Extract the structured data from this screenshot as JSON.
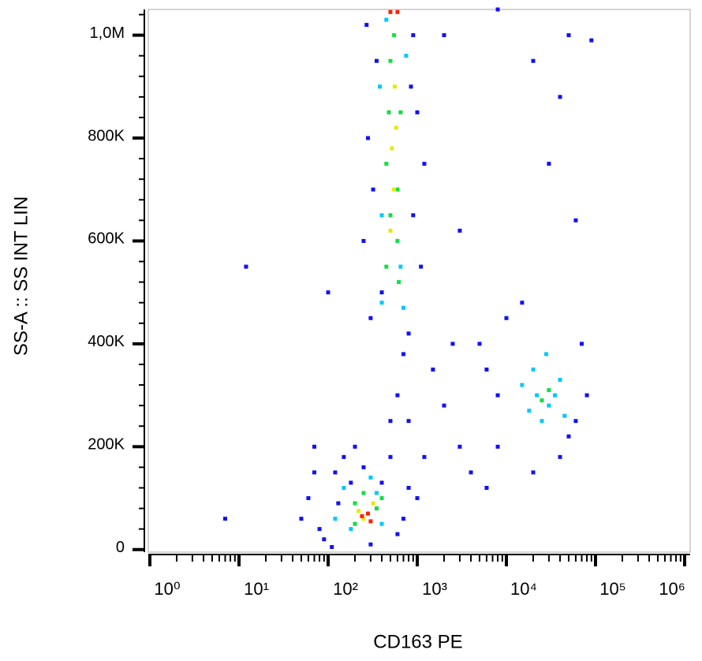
{
  "chart_data": {
    "type": "scatter",
    "x_label": "CD163 PE",
    "y_label": "SS-A :: SS INT LIN",
    "xscale": "log",
    "xlim": [
      1,
      1000000
    ],
    "ylim": [
      -5000,
      1050000
    ],
    "xticks": [
      {
        "value": 1,
        "label": "10⁰"
      },
      {
        "value": 10,
        "label": "10¹"
      },
      {
        "value": 100,
        "label": "10²"
      },
      {
        "value": 1000,
        "label": "10³"
      },
      {
        "value": 10000,
        "label": "10⁴"
      },
      {
        "value": 100000,
        "label": "10⁵"
      },
      {
        "value": 1000000,
        "label": "10⁶"
      }
    ],
    "xminorticks": [
      2,
      3,
      4,
      5,
      6,
      7,
      8,
      9,
      20,
      30,
      40,
      50,
      60,
      70,
      80,
      90,
      200,
      300,
      400,
      500,
      600,
      700,
      800,
      900,
      2000,
      3000,
      4000,
      5000,
      6000,
      7000,
      8000,
      9000,
      20000,
      30000,
      40000,
      50000,
      60000,
      70000,
      80000,
      90000,
      200000,
      300000,
      400000,
      500000,
      600000,
      700000,
      800000,
      900000
    ],
    "yticks": [
      0,
      {
        "value": 200000,
        "label": "200K"
      },
      {
        "value": 400000,
        "label": "400K"
      },
      {
        "value": 600000,
        "label": "600K"
      },
      {
        "value": 800000,
        "label": "800K"
      },
      {
        "value": 1000000,
        "label": "1,0M"
      }
    ],
    "yminorticks": [
      40000,
      80000,
      120000,
      160000,
      240000,
      280000,
      320000,
      360000,
      440000,
      480000,
      520000,
      560000,
      640000,
      680000,
      720000,
      760000,
      840000,
      880000,
      920000,
      960000,
      1040000
    ],
    "series": [
      {
        "color": "#1010ff",
        "x": [
          80,
          120,
          150,
          60,
          90,
          400,
          700,
          500,
          200,
          300,
          130,
          1000,
          70,
          50,
          600,
          180,
          250,
          800,
          110,
          300,
          800,
          250,
          900,
          280,
          1000,
          350,
          900,
          320,
          1100,
          400,
          700,
          270,
          850,
          1200,
          600,
          800,
          2000,
          3000,
          1500,
          500,
          4000,
          2500,
          6000,
          1200,
          5000,
          8000,
          10000,
          60000,
          70000,
          8000,
          15000,
          40000,
          50000,
          6000,
          20000,
          80000,
          12,
          7,
          100,
          2000,
          50000,
          40000,
          20000,
          60000,
          3000,
          30000,
          8000,
          90000,
          70
        ],
        "values": [
          40000,
          150000,
          180000,
          100000,
          20000,
          130000,
          60000,
          180000,
          200000,
          10000,
          90000,
          100000,
          150000,
          60000,
          30000,
          130000,
          160000,
          120000,
          5000,
          450000,
          420000,
          600000,
          650000,
          800000,
          850000,
          950000,
          1000000,
          700000,
          550000,
          500000,
          380000,
          1020000,
          900000,
          750000,
          300000,
          250000,
          280000,
          200000,
          350000,
          250000,
          150000,
          400000,
          120000,
          180000,
          400000,
          300000,
          450000,
          250000,
          400000,
          200000,
          480000,
          180000,
          220000,
          350000,
          150000,
          300000,
          550000,
          60000,
          500000,
          1000000,
          1000000,
          880000,
          950000,
          640000,
          620000,
          750000,
          1050000,
          990000,
          200000
        ]
      },
      {
        "color": "#00c8ff",
        "x": [
          150,
          350,
          180,
          400,
          120,
          300,
          400,
          700,
          380,
          750,
          450,
          650,
          400,
          15000,
          20000,
          30000,
          40000,
          25000,
          35000,
          18000,
          45000,
          28000,
          22000
        ],
        "values": [
          120000,
          110000,
          40000,
          50000,
          60000,
          140000,
          480000,
          470000,
          900000,
          960000,
          1030000,
          550000,
          650000,
          320000,
          350000,
          280000,
          330000,
          250000,
          300000,
          270000,
          260000,
          380000,
          300000
        ]
      },
      {
        "color": "#10e040",
        "x": [
          200,
          350,
          200,
          400,
          250,
          450,
          600,
          500,
          450,
          650,
          500,
          550,
          600,
          480,
          620,
          30000,
          25000
        ],
        "values": [
          90000,
          80000,
          50000,
          100000,
          110000,
          550000,
          600000,
          650000,
          750000,
          850000,
          950000,
          1000000,
          700000,
          850000,
          520000,
          310000,
          290000
        ]
      },
      {
        "color": "#e8e800",
        "x": [
          250,
          320,
          220,
          550,
          520,
          580,
          500,
          560
        ],
        "values": [
          60000,
          90000,
          75000,
          700000,
          780000,
          820000,
          620000,
          900000
        ]
      },
      {
        "color": "#ff2000",
        "x": [
          280,
          240,
          300,
          600,
          500
        ],
        "values": [
          70000,
          65000,
          55000,
          1045000,
          1045000
        ]
      }
    ]
  }
}
